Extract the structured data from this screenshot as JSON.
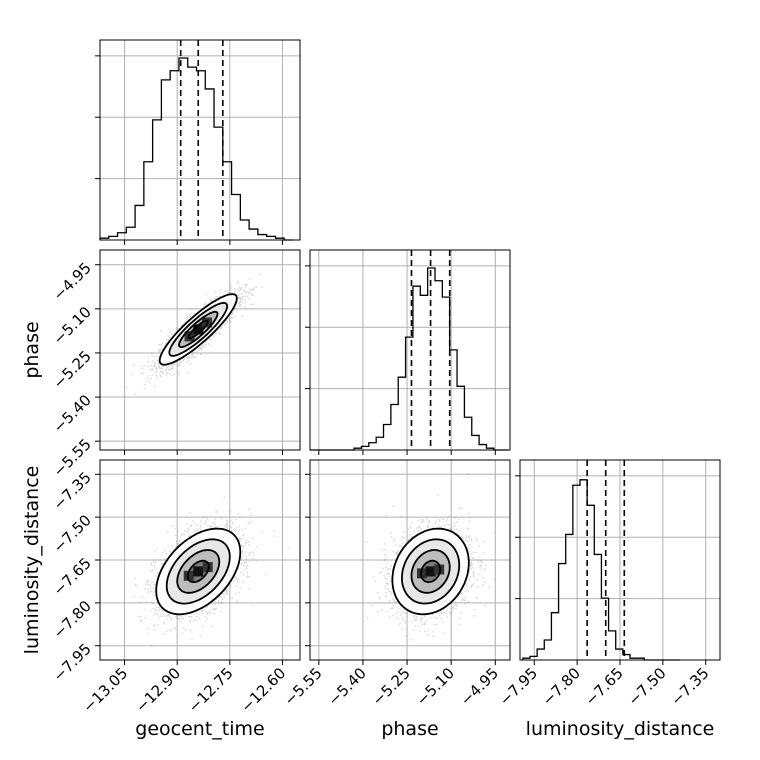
{
  "chart_data": {
    "type": "corner",
    "parameters": [
      {
        "name": "geocent_time",
        "range": [
          -13.12,
          -12.55
        ],
        "ticks": [
          -13.05,
          -12.9,
          -12.75,
          -12.6
        ],
        "tick_labels": [
          "−13.05",
          "−12.90",
          "−12.75",
          "−12.60"
        ],
        "quantiles": [
          -12.89,
          -12.84,
          -12.77
        ],
        "hist_bin_edges": [
          -13.12,
          -13.095,
          -13.07,
          -13.045,
          -13.02,
          -12.995,
          -12.97,
          -12.945,
          -12.92,
          -12.895,
          -12.87,
          -12.845,
          -12.82,
          -12.795,
          -12.77,
          -12.745,
          -12.72,
          -12.695,
          -12.67,
          -12.645,
          -12.62,
          -12.595,
          -12.57
        ],
        "hist_counts": [
          0.01,
          0.02,
          0.04,
          0.07,
          0.19,
          0.43,
          0.66,
          0.88,
          0.93,
          1.0,
          0.95,
          0.93,
          0.83,
          0.62,
          0.43,
          0.25,
          0.11,
          0.06,
          0.03,
          0.02,
          0.01,
          0.0
        ]
      },
      {
        "name": "phase",
        "range": [
          -5.58,
          -4.9
        ],
        "ticks": [
          -5.55,
          -5.4,
          -5.25,
          -5.1,
          -4.95
        ],
        "tick_labels": [
          "−5.55",
          "−5.40",
          "−5.25",
          "−5.10",
          "−4.95"
        ],
        "quantiles": [
          -5.235,
          -5.17,
          -5.105
        ],
        "hist_bin_edges": [
          -5.58,
          -5.555,
          -5.53,
          -5.505,
          -5.48,
          -5.455,
          -5.43,
          -5.405,
          -5.38,
          -5.355,
          -5.33,
          -5.305,
          -5.28,
          -5.255,
          -5.23,
          -5.205,
          -5.18,
          -5.155,
          -5.13,
          -5.105,
          -5.08,
          -5.055,
          -5.03,
          -5.005,
          -4.98,
          -4.955,
          -4.93,
          -4.905
        ],
        "hist_counts": [
          0,
          0,
          0,
          0,
          0,
          0,
          0.01,
          0.02,
          0.04,
          0.07,
          0.14,
          0.25,
          0.4,
          0.62,
          0.9,
          0.85,
          1.0,
          0.93,
          0.84,
          0.55,
          0.35,
          0.18,
          0.08,
          0.03,
          0.01,
          0,
          0
        ]
      },
      {
        "name": "luminosity_distance",
        "range": [
          -8.0,
          -7.3
        ],
        "ticks": [
          -7.95,
          -7.8,
          -7.65,
          -7.5,
          -7.35
        ],
        "tick_labels": [
          "−7.95",
          "−7.80",
          "−7.65",
          "−7.50",
          "−7.35"
        ],
        "quantiles": [
          -7.765,
          -7.7,
          -7.635
        ],
        "hist_bin_edges": [
          -7.99,
          -7.965,
          -7.94,
          -7.915,
          -7.89,
          -7.865,
          -7.84,
          -7.815,
          -7.79,
          -7.765,
          -7.74,
          -7.715,
          -7.69,
          -7.665,
          -7.64,
          -7.615,
          -7.59,
          -7.565,
          -7.54,
          -7.515,
          -7.49,
          -7.465,
          -7.44
        ],
        "hist_counts": [
          0.01,
          0.02,
          0.06,
          0.11,
          0.26,
          0.53,
          0.69,
          0.96,
          0.99,
          0.85,
          0.58,
          0.34,
          0.16,
          0.06,
          0.03,
          0.01,
          0.01,
          0,
          0,
          0,
          0,
          0
        ]
      }
    ],
    "pairs": [
      {
        "x": "geocent_time",
        "y": "phase",
        "mean": [
          -12.84,
          -5.17
        ],
        "sd": [
          0.055,
          0.06
        ],
        "corr": 0.88
      },
      {
        "x": "geocent_time",
        "y": "luminosity_distance",
        "mean": [
          -12.84,
          -7.69
        ],
        "sd": [
          0.06,
          0.075
        ],
        "corr": 0.45
      },
      {
        "x": "phase",
        "y": "luminosity_distance",
        "mean": [
          -5.17,
          -7.69
        ],
        "sd": [
          0.065,
          0.075
        ],
        "corr": 0.2
      }
    ],
    "contour_sigma_levels": [
      0.5,
      1.0,
      1.5,
      2.0
    ],
    "xlabels": [
      "geocent_time",
      "phase",
      "luminosity_distance"
    ],
    "ylabels": [
      "phase",
      "luminosity_distance"
    ],
    "grid": true
  }
}
